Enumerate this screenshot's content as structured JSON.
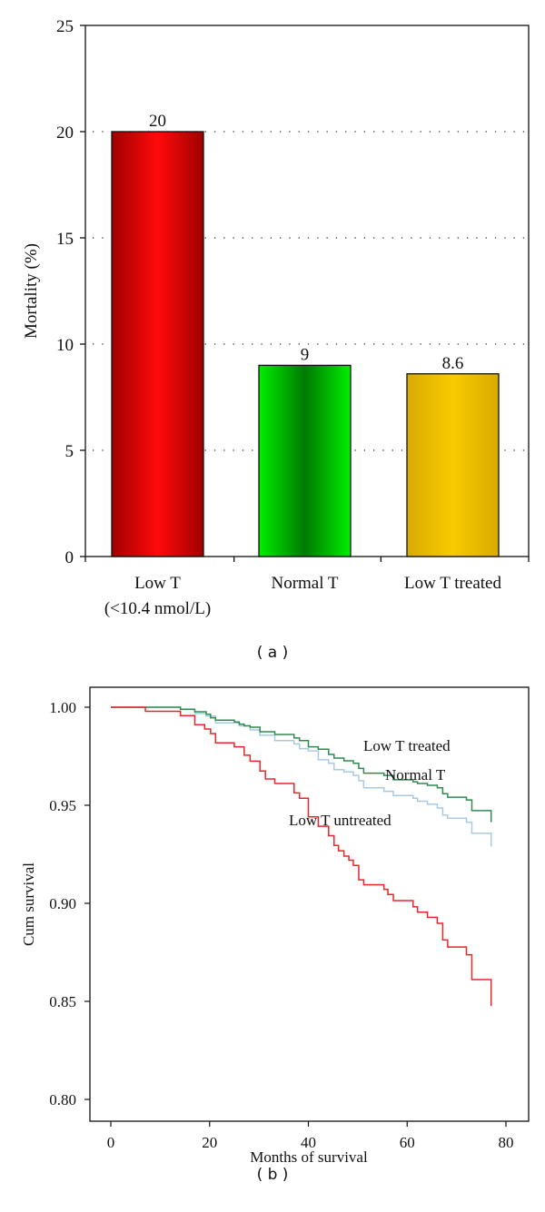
{
  "chart_data": [
    {
      "type": "bar",
      "panel_label": "( a )",
      "categories": [
        "Low T|(<10.4 nmol/L)",
        "Normal T",
        "Low T treated"
      ],
      "values": [
        20,
        9,
        8.6
      ],
      "data_labels": [
        "20",
        "9",
        "8.6"
      ],
      "ylabel": "Mortality (%)",
      "xlabel": "",
      "ylim": [
        0,
        25
      ],
      "yticks": [
        0,
        5,
        10,
        15,
        20,
        25
      ],
      "grid": "dotted horizontal",
      "colors": [
        {
          "edge": "#a00000",
          "center": "#ff0a0a"
        },
        {
          "edge": "#00ee00",
          "center": "#007a00"
        },
        {
          "edge": "#d9aa00",
          "center": "#f9ca00"
        }
      ]
    },
    {
      "type": "line",
      "subtype": "step (Kaplan-Meier)",
      "panel_label": "( b )",
      "xlabel": "Months of survival",
      "ylabel": "Cum survival",
      "xlim": [
        -3,
        84
      ],
      "ylim": [
        0.789,
        1.011
      ],
      "xticks": [
        0,
        20,
        40,
        60,
        80
      ],
      "yticks": [
        0.8,
        0.85,
        0.9,
        0.95,
        1.0
      ],
      "ytick_labels": [
        "0.80",
        "0.85",
        "0.90",
        "0.95",
        "1.00"
      ],
      "grid": "off",
      "series": [
        {
          "name": "Normal T",
          "color": "#a9c9e3",
          "points": [
            [
              0,
              1
            ],
            [
              14.1,
              0.9991
            ],
            [
              17,
              0.9968
            ],
            [
              19.3,
              0.9955
            ],
            [
              21.2,
              0.992
            ],
            [
              26,
              0.9905
            ],
            [
              28.2,
              0.9884
            ],
            [
              30.2,
              0.9857
            ],
            [
              33.2,
              0.983
            ],
            [
              37.1,
              0.9813
            ],
            [
              38.2,
              0.9789
            ],
            [
              40,
              0.9777
            ],
            [
              42,
              0.9732
            ],
            [
              44.1,
              0.9714
            ],
            [
              45.2,
              0.9682
            ],
            [
              47.2,
              0.967
            ],
            [
              49.1,
              0.9652
            ],
            [
              50.2,
              0.9625
            ],
            [
              51.2,
              0.9589
            ],
            [
              55.3,
              0.9571
            ],
            [
              57.2,
              0.955
            ],
            [
              61.2,
              0.9536
            ],
            [
              62.1,
              0.9521
            ],
            [
              64.1,
              0.9505
            ],
            [
              66.1,
              0.9486
            ],
            [
              67.2,
              0.945
            ],
            [
              68.2,
              0.9434
            ],
            [
              72,
              0.9414
            ],
            [
              73.1,
              0.9357
            ],
            [
              77,
              0.9289
            ]
          ]
        },
        {
          "name": "Low T treated",
          "color": "#2e8b50",
          "points": [
            [
              0,
              1
            ],
            [
              14.1,
              0.9989
            ],
            [
              17,
              0.9977
            ],
            [
              19.3,
              0.9964
            ],
            [
              20.2,
              0.9946
            ],
            [
              21.2,
              0.9934
            ],
            [
              25,
              0.9925
            ],
            [
              26,
              0.9914
            ],
            [
              27,
              0.9905
            ],
            [
              28.2,
              0.9898
            ],
            [
              30.2,
              0.9875
            ],
            [
              33.2,
              0.9861
            ],
            [
              37.1,
              0.9843
            ],
            [
              38.2,
              0.983
            ],
            [
              40,
              0.9798
            ],
            [
              42,
              0.9786
            ],
            [
              44.1,
              0.9759
            ],
            [
              45.2,
              0.9741
            ],
            [
              47.2,
              0.9727
            ],
            [
              49.1,
              0.9714
            ],
            [
              50.2,
              0.9688
            ],
            [
              51.2,
              0.9664
            ],
            [
              55.3,
              0.9652
            ],
            [
              57.2,
              0.963
            ],
            [
              61.2,
              0.962
            ],
            [
              62.1,
              0.9611
            ],
            [
              64.1,
              0.9602
            ],
            [
              66.1,
              0.9589
            ],
            [
              67.2,
              0.9559
            ],
            [
              68.2,
              0.9541
            ],
            [
              72,
              0.9527
            ],
            [
              73.1,
              0.9473
            ],
            [
              77,
              0.9414
            ]
          ]
        },
        {
          "name": "Low T untreated",
          "color": "#e8262b",
          "points": [
            [
              0,
              1
            ],
            [
              7,
              0.9979
            ],
            [
              14.1,
              0.9957
            ],
            [
              17,
              0.9911
            ],
            [
              19,
              0.9889
            ],
            [
              20.2,
              0.9866
            ],
            [
              21.2,
              0.9818
            ],
            [
              25,
              0.9798
            ],
            [
              27,
              0.9755
            ],
            [
              28.2,
              0.9725
            ],
            [
              30.2,
              0.9675
            ],
            [
              31.3,
              0.9634
            ],
            [
              33.2,
              0.9611
            ],
            [
              37.1,
              0.9563
            ],
            [
              38.2,
              0.9536
            ],
            [
              40,
              0.9441
            ],
            [
              42,
              0.9393
            ],
            [
              44.1,
              0.9345
            ],
            [
              45.2,
              0.9295
            ],
            [
              46.1,
              0.9268
            ],
            [
              47.2,
              0.9241
            ],
            [
              48.2,
              0.922
            ],
            [
              49.1,
              0.9193
            ],
            [
              50.2,
              0.912
            ],
            [
              51.2,
              0.9095
            ],
            [
              55.3,
              0.9071
            ],
            [
              56.1,
              0.9045
            ],
            [
              57.2,
              0.9014
            ],
            [
              61.2,
              0.8982
            ],
            [
              62.1,
              0.8955
            ],
            [
              64.1,
              0.8929
            ],
            [
              66.1,
              0.8898
            ],
            [
              67.2,
              0.8813
            ],
            [
              68.2,
              0.8777
            ],
            [
              72,
              0.8738
            ],
            [
              73.1,
              0.8611
            ],
            [
              77,
              0.8477
            ]
          ]
        }
      ],
      "annotations": [
        "Low T treated",
        "Normal T",
        "Low T untreated"
      ]
    }
  ]
}
